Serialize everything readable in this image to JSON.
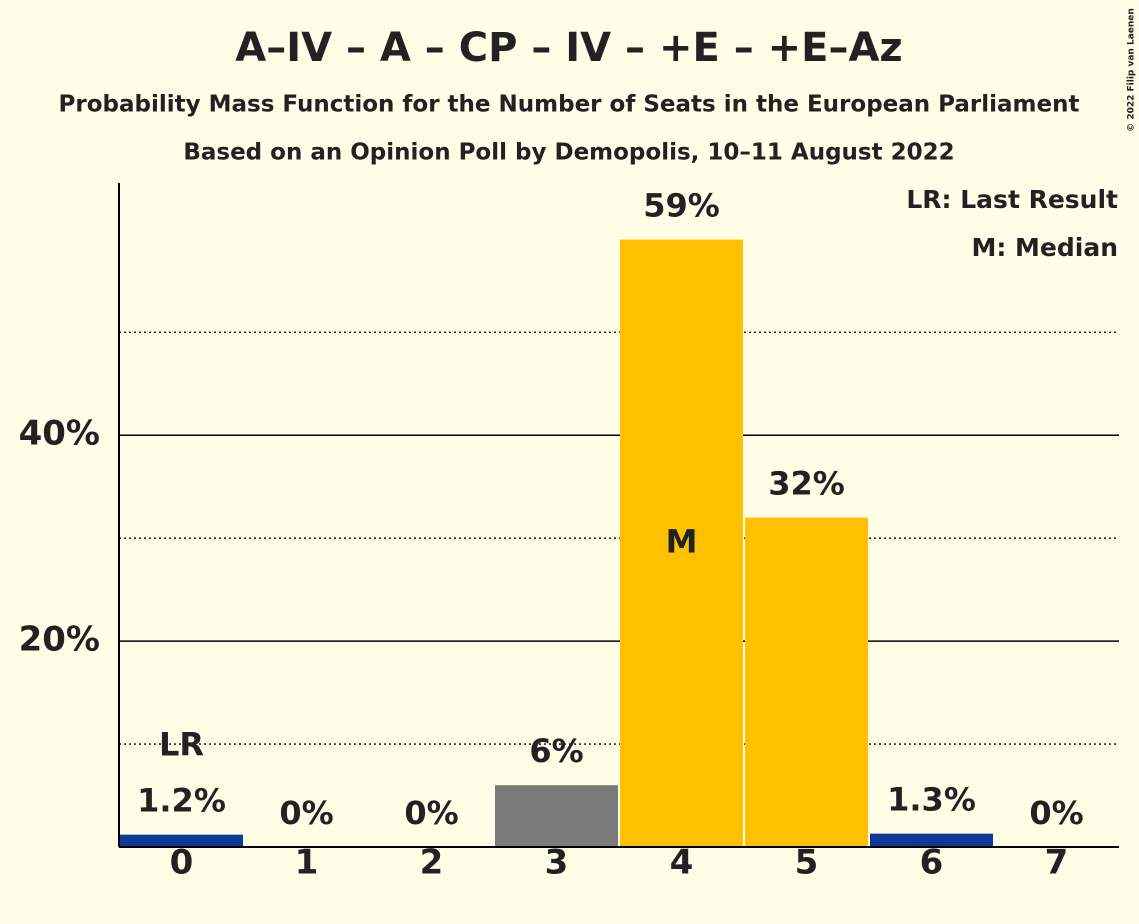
{
  "chart_data": {
    "type": "bar",
    "title": "A–IV – A – CP – IV – +E – +E–Az",
    "subtitle": "Probability Mass Function for the Number of Seats in the European Parliament",
    "subtitle2": "Based on an Opinion Poll by Demopolis, 10–11 August 2022",
    "copyright": "© 2022 Filip van Laenen",
    "categories": [
      "0",
      "1",
      "2",
      "3",
      "4",
      "5",
      "6",
      "7"
    ],
    "values": [
      1.2,
      0,
      0,
      6,
      59,
      32,
      1.3,
      0
    ],
    "value_labels": [
      "1.2%",
      "0%",
      "0%",
      "6%",
      "59%",
      "32%",
      "1.3%",
      "0%"
    ],
    "colors": [
      "#0d3a96",
      "#0d3a96",
      "#0d3a96",
      "#7a7a7a",
      "#ffc000",
      "#ffc000",
      "#0d3a96",
      "#0d3a96"
    ],
    "ylim": [
      0,
      64.5
    ],
    "yticks": [
      {
        "value": 20,
        "label": "20%"
      },
      {
        "value": 40,
        "label": "40%"
      }
    ],
    "minor_yticks": [
      10,
      30,
      50
    ],
    "grid": true,
    "annotations": [
      {
        "text": "LR",
        "category": "0"
      },
      {
        "text": "M",
        "category": "4"
      }
    ],
    "legend": [
      "LR: Last Result",
      "M: Median"
    ]
  }
}
